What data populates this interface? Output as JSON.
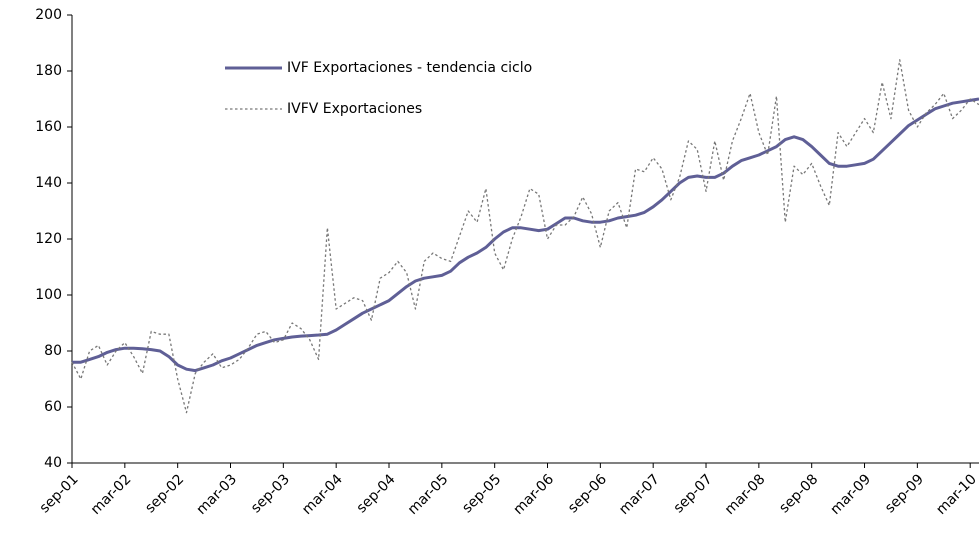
{
  "chart_data": {
    "type": "line",
    "categories": [
      "sep-01",
      null,
      null,
      null,
      null,
      null,
      "mar-02",
      null,
      null,
      null,
      null,
      null,
      "sep-02",
      null,
      null,
      null,
      null,
      null,
      "mar-03",
      null,
      null,
      null,
      null,
      null,
      "sep-03",
      null,
      null,
      null,
      null,
      null,
      "mar-04",
      null,
      null,
      null,
      null,
      null,
      "sep-04",
      null,
      null,
      null,
      null,
      null,
      "mar-05",
      null,
      null,
      null,
      null,
      null,
      "sep-05",
      null,
      null,
      null,
      null,
      null,
      "mar-06",
      null,
      null,
      null,
      null,
      null,
      "sep-06",
      null,
      null,
      null,
      null,
      null,
      "mar-07",
      null,
      null,
      null,
      null,
      null,
      "sep-07",
      null,
      null,
      null,
      null,
      null,
      "mar-08",
      null,
      null,
      null,
      null,
      null,
      "sep-08",
      null,
      null,
      null,
      null,
      null,
      "mar-09",
      null,
      null,
      null,
      null,
      null,
      "sep-09",
      null,
      null,
      null,
      null,
      null,
      "mar-10",
      null
    ],
    "series": [
      {
        "name": "IVF Exportaciones - tendencia ciclo",
        "color": "#5f5f96",
        "style": "solid",
        "values": [
          76,
          76,
          77,
          78,
          79.5,
          80.5,
          81,
          81,
          80.8,
          80.5,
          80,
          78,
          75,
          73.5,
          73,
          74,
          75,
          76.5,
          77.5,
          79,
          80.5,
          82,
          83,
          84,
          84.5,
          85,
          85.3,
          85.5,
          85.7,
          86,
          87.5,
          89.5,
          91.5,
          93.5,
          95,
          96.5,
          98,
          100.5,
          103,
          105,
          106,
          106.5,
          107,
          108.5,
          111.5,
          113.5,
          115,
          117,
          120,
          122.5,
          124,
          124,
          123.5,
          123,
          123.5,
          125.5,
          127.5,
          127.5,
          126.5,
          126,
          126,
          126.5,
          127.5,
          128,
          128.5,
          129.5,
          131.5,
          134,
          137,
          140,
          142,
          142.5,
          142,
          142,
          143.5,
          146,
          148,
          149,
          150,
          151.5,
          153,
          155.5,
          156.5,
          155.5,
          153,
          150,
          147,
          146,
          146,
          146.5,
          147,
          148.5,
          151.5,
          154.5,
          157.5,
          160.5,
          162.5,
          164.5,
          166.5,
          167.5,
          168.5,
          169,
          169.5,
          170
        ]
      },
      {
        "name": "IVFV Exportaciones",
        "color": "#777777",
        "style": "dotted",
        "values": [
          76,
          70,
          80,
          82,
          75,
          80,
          83,
          78,
          72,
          87,
          86,
          86,
          70,
          58,
          72,
          76,
          79,
          74,
          75,
          77,
          81,
          86,
          87,
          83,
          84,
          90,
          88,
          84,
          77,
          124,
          95,
          97,
          99,
          98,
          91,
          106,
          108,
          112,
          108,
          95,
          112,
          115,
          113,
          112,
          121,
          130,
          126,
          138,
          115,
          109,
          120,
          128,
          138,
          136,
          120,
          125,
          125,
          128,
          135,
          129,
          117,
          130,
          133,
          124,
          145,
          144,
          149,
          145,
          134,
          142,
          155,
          152,
          137,
          155,
          141,
          155,
          163,
          172,
          158,
          150,
          171,
          126,
          146,
          143,
          147,
          139,
          132,
          158,
          153,
          158,
          163,
          158,
          176,
          163,
          184,
          166,
          160,
          165,
          168,
          172,
          163,
          166,
          170,
          168
        ]
      }
    ],
    "ylim": [
      40,
      200
    ],
    "yticks": [
      40,
      60,
      80,
      100,
      120,
      140,
      160,
      180,
      200
    ]
  }
}
